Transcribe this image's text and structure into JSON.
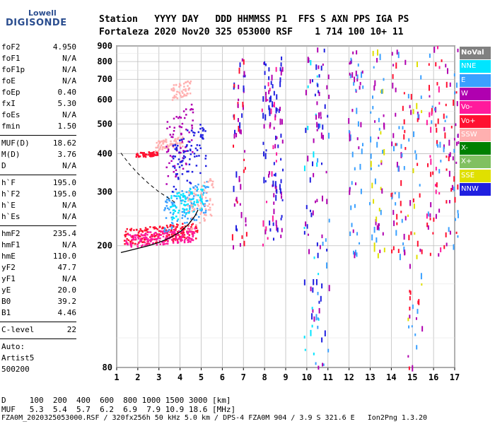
{
  "logo": {
    "line1": "Lowell",
    "line2": "DIGISONDE"
  },
  "header": {
    "line1": "Station   YYYY DAY   DDD HHMMSS P1  FFS S AXN PPS IGA PS",
    "line2": "Fortaleza 2020 Nov20 325 053000 RSF    1 714 100 10+ 11"
  },
  "params1": [
    {
      "name": "foF2",
      "value": "4.950"
    },
    {
      "name": "foF1",
      "value": "N/A"
    },
    {
      "name": "foF1p",
      "value": "N/A"
    },
    {
      "name": "foE",
      "value": "N/A"
    },
    {
      "name": "foEp",
      "value": "0.40"
    },
    {
      "name": "fxI",
      "value": "5.30"
    },
    {
      "name": "foEs",
      "value": "N/A"
    },
    {
      "name": "fmin",
      "value": "1.50"
    }
  ],
  "params2": [
    {
      "name": "MUF(D)",
      "value": "18.62"
    },
    {
      "name": "M(D)",
      "value": "3.76"
    },
    {
      "name": "D",
      "value": "N/A"
    }
  ],
  "params3": [
    {
      "name": "h`F",
      "value": "195.0"
    },
    {
      "name": "h`F2",
      "value": "195.0"
    },
    {
      "name": "h`E",
      "value": "N/A"
    },
    {
      "name": "h`Es",
      "value": "N/A"
    }
  ],
  "params4": [
    {
      "name": "hmF2",
      "value": "235.4"
    },
    {
      "name": "hmF1",
      "value": "N/A"
    },
    {
      "name": "hmE",
      "value": "110.0"
    },
    {
      "name": "yF2",
      "value": "47.7"
    },
    {
      "name": "yF1",
      "value": "N/A"
    },
    {
      "name": "yE",
      "value": "20.0"
    },
    {
      "name": "B0",
      "value": "39.2"
    },
    {
      "name": "B1",
      "value": "4.46"
    }
  ],
  "clevel": {
    "name": "C-level",
    "value": "22"
  },
  "auto": {
    "line1": "Auto:",
    "line2": "Artist5",
    "line3": "500200"
  },
  "bottom": {
    "d_line": "D     100  200  400  600  800 1000 1500 3000 [km]",
    "muf_line": "MUF   5.3  5.4  5.7  6.2  6.9  7.9 10.9 18.6 [MHz]",
    "file_line": "FZA0M_2020325053000.RSF / 320fx256h 50 kHz 5.0 km / DPS-4 FZA0M 904 / 3.9 S 321.6 E   Ion2Png 1.3.20"
  },
  "legend": [
    {
      "label": "NoVal",
      "color": "#808080"
    },
    {
      "label": "NNE",
      "color": "#00e5ff"
    },
    {
      "label": "E",
      "color": "#3aa0ff"
    },
    {
      "label": "W",
      "color": "#b000b0"
    },
    {
      "label": "Vo-",
      "color": "#ff1a9c"
    },
    {
      "label": "Vo+",
      "color": "#ff1030"
    },
    {
      "label": "SSW",
      "color": "#ffb0b0"
    },
    {
      "label": "X-",
      "color": "#008000"
    },
    {
      "label": "X+",
      "color": "#80c060"
    },
    {
      "label": "SSE",
      "color": "#e0e000"
    },
    {
      "label": "NNW",
      "color": "#2020e0"
    }
  ],
  "chart_data": {
    "type": "scatter",
    "title": "",
    "xlabel": "",
    "ylabel": "",
    "xlim": [
      1,
      17
    ],
    "ylim": [
      80,
      900
    ],
    "y_scale": "log",
    "x_ticks": [
      "1",
      "2",
      "3",
      "4",
      "5",
      "6",
      "7",
      "8",
      "9",
      "10",
      "11",
      "12",
      "13",
      "14",
      "15",
      "16",
      "17"
    ],
    "y_ticks": [
      "80",
      "200",
      "300",
      "400",
      "500",
      "600",
      "700",
      "800",
      "900"
    ],
    "trace_o": [
      [
        1.2,
        190
      ],
      [
        1.6,
        193
      ],
      [
        2.0,
        196
      ],
      [
        2.5,
        200
      ],
      [
        3.0,
        205
      ],
      [
        3.5,
        212
      ],
      [
        4.0,
        222
      ],
      [
        4.4,
        235
      ],
      [
        4.7,
        250
      ],
      [
        4.85,
        262
      ]
    ],
    "trace_dashed": [
      [
        1.2,
        402
      ],
      [
        1.6,
        370
      ],
      [
        2.0,
        345
      ],
      [
        2.5,
        320
      ],
      [
        3.0,
        300
      ],
      [
        3.5,
        285
      ],
      [
        3.8,
        276
      ]
    ],
    "bands": [
      {
        "x": [
          1.3,
          4.8
        ],
        "h": [
          200,
          240
        ],
        "color": "#ff1030"
      },
      {
        "x": [
          1.4,
          4.7
        ],
        "h": [
          198,
          230
        ],
        "color": "#ff1a9c"
      },
      {
        "x": [
          3.2,
          5.3
        ],
        "h": [
          220,
          330
        ],
        "color": "#3aa0ff"
      },
      {
        "x": [
          3.5,
          5.1
        ],
        "h": [
          240,
          320
        ],
        "color": "#00e5ff"
      },
      {
        "x": [
          4.3,
          5.6
        ],
        "h": [
          220,
          340
        ],
        "color": "#ffb0b0"
      },
      {
        "x": [
          1.8,
          2.9
        ],
        "h": [
          390,
          410
        ],
        "color": "#ff1030"
      },
      {
        "x": [
          2.8,
          4.1
        ],
        "h": [
          410,
          460
        ],
        "color": "#ffb0b0"
      },
      {
        "x": [
          3.5,
          4.5
        ],
        "h": [
          600,
          700
        ],
        "color": "#ffb0b0"
      },
      {
        "x": [
          3.3,
          4.6
        ],
        "h": [
          300,
          600
        ],
        "color": "#b000b0"
      },
      {
        "x": [
          3.6,
          5.2
        ],
        "h": [
          280,
          520
        ],
        "color": "#2020e0"
      }
    ],
    "columns": [
      {
        "x": 6.8,
        "h": [
          200,
          820
        ],
        "colors": [
          "#b000b0",
          "#2020e0",
          "#ff1030"
        ]
      },
      {
        "x": 8.2,
        "h": [
          200,
          820
        ],
        "colors": [
          "#b000b0",
          "#2020e0",
          "#ff1a9c"
        ]
      },
      {
        "x": 8.5,
        "h": [
          200,
          880
        ],
        "colors": [
          "#b000b0",
          "#2020e0"
        ]
      },
      {
        "x": 10.2,
        "h": [
          80,
          900
        ],
        "colors": [
          "#2020e0",
          "#b000b0",
          "#00e5ff"
        ]
      },
      {
        "x": 10.7,
        "h": [
          80,
          900
        ],
        "colors": [
          "#2020e0",
          "#b000b0",
          "#3aa0ff"
        ]
      },
      {
        "x": 12.3,
        "h": [
          180,
          880
        ],
        "colors": [
          "#3aa0ff",
          "#b000b0"
        ]
      },
      {
        "x": 13.3,
        "h": [
          180,
          880
        ],
        "colors": [
          "#3aa0ff",
          "#b000b0",
          "#e0e000"
        ]
      },
      {
        "x": 14.3,
        "h": [
          180,
          900
        ],
        "colors": [
          "#b000b0",
          "#ff1030",
          "#3aa0ff"
        ]
      },
      {
        "x": 15.1,
        "h": [
          80,
          900
        ],
        "colors": [
          "#ff1030",
          "#b000b0",
          "#3aa0ff",
          "#e0e000"
        ]
      },
      {
        "x": 16.0,
        "h": [
          180,
          900
        ],
        "colors": [
          "#ff1a9c",
          "#b000b0",
          "#3aa0ff",
          "#ff1030"
        ]
      },
      {
        "x": 16.8,
        "h": [
          200,
          900
        ],
        "colors": [
          "#b000b0",
          "#ff1030",
          "#3aa0ff"
        ]
      }
    ]
  }
}
